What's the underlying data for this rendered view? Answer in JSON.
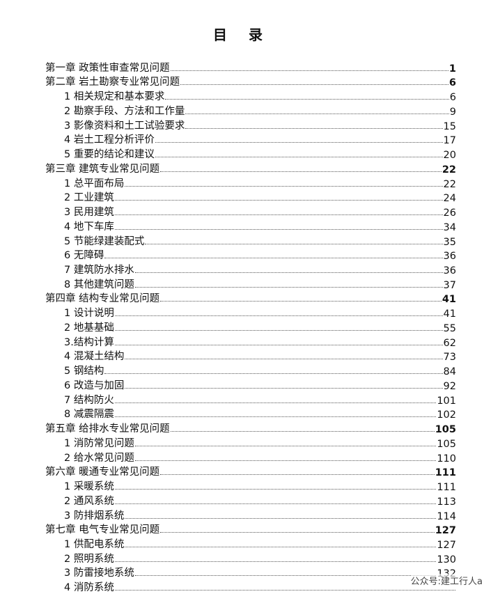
{
  "title": "目 录",
  "entries": [
    {
      "level": "chapter",
      "label": "第一章  政策性审查常见问题",
      "page": "1"
    },
    {
      "level": "chapter",
      "label": "第二章  岩土勘察专业常见问题",
      "page": "6"
    },
    {
      "level": "sub",
      "label": "1 相关规定和基本要求",
      "page": "6"
    },
    {
      "level": "sub",
      "label": "2  勘察手段、方法和工作量",
      "page": "9"
    },
    {
      "level": "sub",
      "label": "3  影像资料和土工试验要求",
      "page": "15"
    },
    {
      "level": "sub",
      "label": "4  岩土工程分析评价",
      "page": "17"
    },
    {
      "level": "sub",
      "label": "5  重要的结论和建议",
      "page": "20"
    },
    {
      "level": "chapter",
      "label": "第三章  建筑专业常见问题",
      "page": "22"
    },
    {
      "level": "sub",
      "label": "1 总平面布局",
      "page": "22"
    },
    {
      "level": "sub",
      "label": "2  工业建筑",
      "page": "24"
    },
    {
      "level": "sub",
      "label": "3 民用建筑",
      "page": "26"
    },
    {
      "level": "sub",
      "label": "4 地下车库",
      "page": "34"
    },
    {
      "level": "sub",
      "label": "5  节能绿建装配式",
      "page": "35"
    },
    {
      "level": "sub",
      "label": "6 无障碍",
      "page": "36"
    },
    {
      "level": "sub",
      "label": "7 建筑防水排水",
      "page": "36"
    },
    {
      "level": "sub",
      "label": "8  其他建筑问题",
      "page": "37"
    },
    {
      "level": "chapter",
      "label": "第四章  结构专业常见问题",
      "page": "41"
    },
    {
      "level": "sub",
      "label": "1 设计说明",
      "page": "41"
    },
    {
      "level": "sub",
      "label": "2  地基基础",
      "page": "55"
    },
    {
      "level": "sub",
      "label": "3.结构计算",
      "page": "62"
    },
    {
      "level": "sub",
      "label": "4  混凝土结构",
      "page": "73"
    },
    {
      "level": "sub",
      "label": "5  钢结构",
      "page": "84"
    },
    {
      "level": "sub",
      "label": "6  改造与加固",
      "page": "92"
    },
    {
      "level": "sub",
      "label": "7 结构防火",
      "page": "101"
    },
    {
      "level": "sub",
      "label": "8  减震隔震",
      "page": "102"
    },
    {
      "level": "chapter",
      "label": "第五章  给排水专业常见问题",
      "page": "105"
    },
    {
      "level": "sub",
      "label": "1  消防常见问题",
      "page": "105"
    },
    {
      "level": "sub",
      "label": "2  给水常见问题",
      "page": "110"
    },
    {
      "level": "chapter",
      "label": "第六章  暖通专业常见问题",
      "page": "111"
    },
    {
      "level": "sub",
      "label": "1  采暖系统",
      "page": "111"
    },
    {
      "level": "sub",
      "label": "2  通风系统",
      "page": "113"
    },
    {
      "level": "sub",
      "label": "3  防排烟系统",
      "page": "114"
    },
    {
      "level": "chapter",
      "label": "第七章  电气专业常见问题",
      "page": "127"
    },
    {
      "level": "sub",
      "label": "1  供配电系统",
      "page": "127"
    },
    {
      "level": "sub",
      "label": "2  照明系统",
      "page": "130"
    },
    {
      "level": "sub",
      "label": "3  防雷接地系统",
      "page": "132"
    },
    {
      "level": "sub",
      "label": "4  消防系统",
      "page": ""
    }
  ],
  "watermark": "公众号:建工行人a"
}
